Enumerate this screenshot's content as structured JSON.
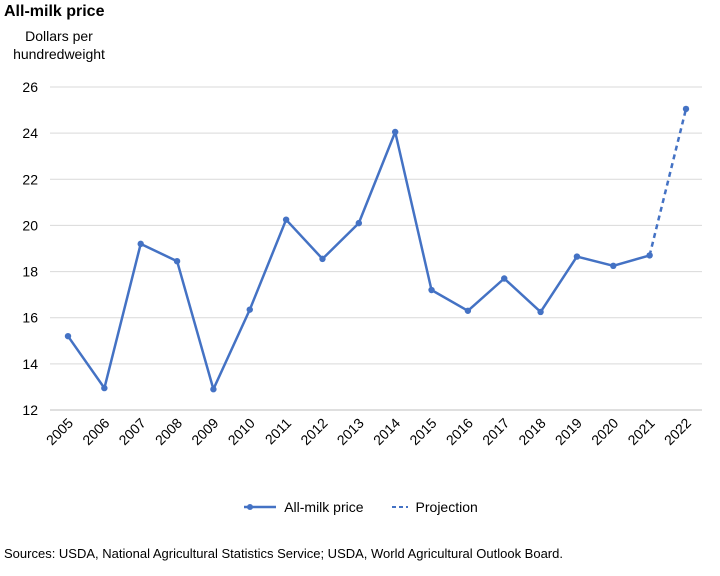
{
  "chart_data": {
    "type": "line",
    "title": "All-milk price",
    "ylabel": "Dollars per hundredweight",
    "xlabel": "",
    "categories": [
      "2005",
      "2006",
      "2007",
      "2008",
      "2009",
      "2010",
      "2011",
      "2012",
      "2013",
      "2014",
      "2015",
      "2016",
      "2017",
      "2018",
      "2019",
      "2020",
      "2021",
      "2022"
    ],
    "series": [
      {
        "name": "All-milk price",
        "style": "solid",
        "color": "#4472c4",
        "values": [
          15.2,
          12.95,
          19.2,
          18.45,
          12.9,
          16.35,
          20.25,
          18.55,
          20.1,
          24.05,
          17.2,
          16.3,
          17.7,
          16.25,
          18.65,
          18.25,
          18.7,
          null
        ]
      },
      {
        "name": "Projection",
        "style": "dashed",
        "color": "#4472c4",
        "values": [
          null,
          null,
          null,
          null,
          null,
          null,
          null,
          null,
          null,
          null,
          null,
          null,
          null,
          null,
          null,
          null,
          18.7,
          25.05
        ]
      }
    ],
    "ylim": [
      12,
      26
    ],
    "yticks": [
      "12",
      "14",
      "16",
      "18",
      "20",
      "22",
      "24",
      "26"
    ],
    "grid": true,
    "legend": "bottom"
  },
  "source": "Sources: USDA, National Agricultural Statistics Service; USDA, World Agricultural Outlook Board."
}
